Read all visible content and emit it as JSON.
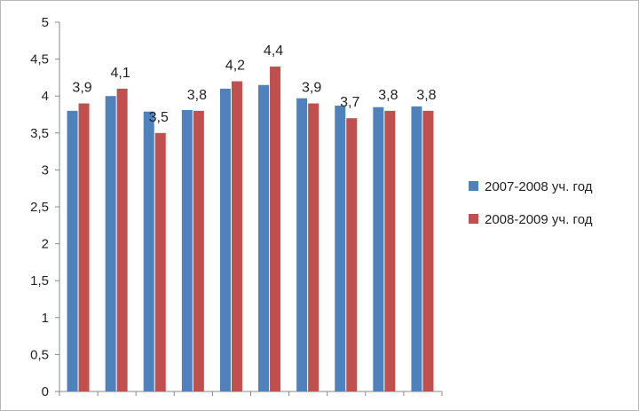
{
  "chart_data": {
    "type": "bar",
    "categories": [
      "",
      "",
      "",
      "",
      "",
      "",
      "",
      "",
      "",
      ""
    ],
    "series": [
      {
        "name": "2007-2008 уч. год",
        "color": "#4F81BD",
        "values": [
          3.8,
          4.0,
          3.79,
          3.81,
          4.1,
          4.15,
          3.97,
          3.87,
          3.85,
          3.86
        ]
      },
      {
        "name": "2008-2009 уч. год",
        "color": "#C0504D",
        "values": [
          3.9,
          4.1,
          3.5,
          3.8,
          4.2,
          4.4,
          3.9,
          3.7,
          3.8,
          3.8
        ]
      }
    ],
    "data_labels": [
      "3,9",
      "4,1",
      "3,5",
      "3,8",
      "4,2",
      "4,4",
      "3,9",
      "3,7",
      "3,8",
      "3,8"
    ],
    "y_ticks": [
      "0",
      "0,5",
      "1",
      "1,5",
      "2",
      "2,5",
      "3",
      "3,5",
      "4",
      "4,5",
      "5"
    ],
    "ylim": [
      0,
      5
    ],
    "y_step": 0.5,
    "title": "",
    "xlabel": "",
    "ylabel": "",
    "grid": false,
    "legend_position": "right"
  }
}
